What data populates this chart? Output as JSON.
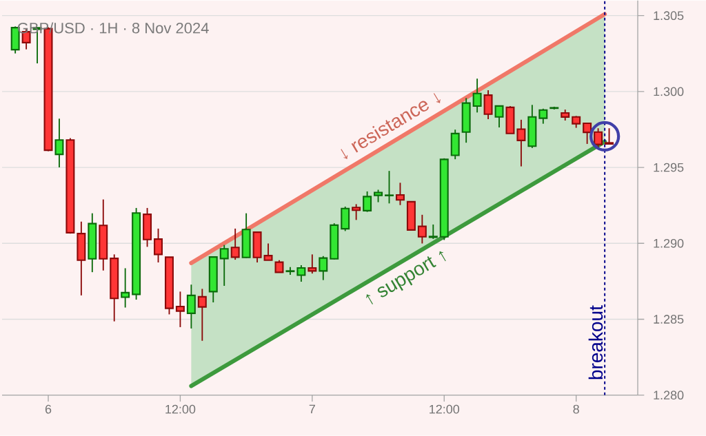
{
  "chart_data": {
    "type": "candlestick",
    "title": "GBP/USD · 1H · 8 Nov 2024",
    "x": [
      "2024-11-05T21:00",
      "2024-11-05T22:00",
      "2024-11-05T23:00",
      "2024-11-06T00:00",
      "2024-11-06T01:00",
      "2024-11-06T02:00",
      "2024-11-06T03:00",
      "2024-11-06T04:00",
      "2024-11-06T05:00",
      "2024-11-06T06:00",
      "2024-11-06T07:00",
      "2024-11-06T08:00",
      "2024-11-06T09:00",
      "2024-11-06T10:00",
      "2024-11-06T11:00",
      "2024-11-06T12:00",
      "2024-11-06T13:00",
      "2024-11-06T14:00",
      "2024-11-06T15:00",
      "2024-11-06T16:00",
      "2024-11-06T17:00",
      "2024-11-06T18:00",
      "2024-11-06T19:00",
      "2024-11-06T20:00",
      "2024-11-06T21:00",
      "2024-11-06T22:00",
      "2024-11-06T23:00",
      "2024-11-07T00:00",
      "2024-11-07T01:00",
      "2024-11-07T02:00",
      "2024-11-07T03:00",
      "2024-11-07T04:00",
      "2024-11-07T05:00",
      "2024-11-07T06:00",
      "2024-11-07T07:00",
      "2024-11-07T08:00",
      "2024-11-07T09:00",
      "2024-11-07T10:00",
      "2024-11-07T11:00",
      "2024-11-07T12:00",
      "2024-11-07T13:00",
      "2024-11-07T14:00",
      "2024-11-07T15:00",
      "2024-11-07T16:00",
      "2024-11-07T17:00",
      "2024-11-07T18:00",
      "2024-11-07T19:00",
      "2024-11-07T20:00",
      "2024-11-07T21:00",
      "2024-11-07T22:00",
      "2024-11-07T23:00",
      "2024-11-08T00:00",
      "2024-11-08T01:00",
      "2024-11-08T02:00",
      "2024-11-08T03:00"
    ],
    "ohlc": [
      [
        1.30276,
        1.30429,
        1.30251,
        1.30421
      ],
      [
        1.30394,
        1.30417,
        1.30278,
        1.30322
      ],
      [
        1.3041,
        1.3042,
        1.30186,
        1.3042
      ],
      [
        1.30414,
        1.30424,
        1.29607,
        1.29613
      ],
      [
        1.29586,
        1.29821,
        1.295,
        1.29681
      ],
      [
        1.29681,
        1.29693,
        1.29064,
        1.2907
      ],
      [
        1.29064,
        1.29143,
        1.28657,
        1.28889
      ],
      [
        1.28898,
        1.29198,
        1.2881,
        1.2913
      ],
      [
        1.29118,
        1.29289,
        1.28821,
        1.28898
      ],
      [
        1.28901,
        1.28927,
        1.28486,
        1.28637
      ],
      [
        1.28645,
        1.28836,
        1.28577,
        1.28675
      ],
      [
        1.28664,
        1.29233,
        1.28629,
        1.292
      ],
      [
        1.29191,
        1.29233,
        1.28977,
        1.29025
      ],
      [
        1.29028,
        1.29097,
        1.28874,
        1.28927
      ],
      [
        1.28909,
        1.28909,
        1.28532,
        1.28572
      ],
      [
        1.28584,
        1.28682,
        1.28448,
        1.28554
      ],
      [
        1.28539,
        1.28728,
        1.28439,
        1.28657
      ],
      [
        1.28648,
        1.287,
        1.28358,
        1.28581
      ],
      [
        1.28682,
        1.2891,
        1.28611,
        1.2891
      ],
      [
        1.289,
        1.28989,
        1.2872,
        1.28964
      ],
      [
        1.28973,
        1.29097,
        1.28892,
        1.28909
      ],
      [
        1.28907,
        1.29198,
        1.28904,
        1.29091
      ],
      [
        1.29073,
        1.29073,
        1.28874,
        1.28907
      ],
      [
        1.28919,
        1.28999,
        1.28889,
        1.28889
      ],
      [
        1.28876,
        1.28889,
        1.28809,
        1.28809
      ],
      [
        1.28815,
        1.28844,
        1.28792,
        1.28818
      ],
      [
        1.2879,
        1.28856,
        1.28747,
        1.28838
      ],
      [
        1.28838,
        1.28927,
        1.28801,
        1.28818
      ],
      [
        1.28818,
        1.28916,
        1.28758,
        1.28903
      ],
      [
        1.28898,
        1.29132,
        1.28894,
        1.2912
      ],
      [
        1.29096,
        1.29242,
        1.29081,
        1.29229
      ],
      [
        1.29236,
        1.29258,
        1.29154,
        1.29218
      ],
      [
        1.29215,
        1.29342,
        1.29207,
        1.29308
      ],
      [
        1.29316,
        1.29353,
        1.29271,
        1.29335
      ],
      [
        1.29315,
        1.29477,
        1.29263,
        1.29317
      ],
      [
        1.29319,
        1.29399,
        1.29252,
        1.29286
      ],
      [
        1.29274,
        1.29274,
        1.29088,
        1.29088
      ],
      [
        1.29112,
        1.29188,
        1.28999,
        1.29043
      ],
      [
        1.2904,
        1.29124,
        1.29029,
        1.29045
      ],
      [
        1.29043,
        1.2956,
        1.29022,
        1.29553
      ],
      [
        1.2958,
        1.29749,
        1.29554,
        1.29723
      ],
      [
        1.29733,
        1.29957,
        1.29663,
        1.29924
      ],
      [
        1.29904,
        1.30085,
        1.29862,
        1.29987
      ],
      [
        1.29976,
        1.30009,
        1.29818,
        1.29851
      ],
      [
        1.29833,
        1.29905,
        1.29764,
        1.29905
      ],
      [
        1.29896,
        1.29904,
        1.29724,
        1.29724
      ],
      [
        1.29752,
        1.29814,
        1.29507,
        1.29678
      ],
      [
        1.2964,
        1.29912,
        1.29628,
        1.29833
      ],
      [
        1.29824,
        1.29887,
        1.29788,
        1.29878
      ],
      [
        1.2989,
        1.299,
        1.29882,
        1.29893
      ],
      [
        1.29859,
        1.29881,
        1.29809,
        1.29832
      ],
      [
        1.29833,
        1.29839,
        1.29761,
        1.29788
      ],
      [
        1.29791,
        1.29791,
        1.29655,
        1.29731
      ],
      [
        1.29733,
        1.29758,
        1.29625,
        1.29652
      ],
      [
        1.29662,
        1.29758,
        1.29652,
        1.29655
      ]
    ],
    "series": [
      {
        "name": "↓ resistance ↓",
        "type": "line",
        "color": "#f07868",
        "x": [
          "2024-11-06T13:00",
          "2024-11-08T02:36"
        ],
        "values": [
          1.2887,
          1.3051
        ]
      },
      {
        "name": "↑ support ↑",
        "type": "line",
        "color": "#3d9a3d",
        "x": [
          "2024-11-06T13:00",
          "2024-11-08T02:36"
        ],
        "values": [
          1.2806,
          1.2967
        ],
        "lower": [
          1.2806,
          1.2967
        ],
        "upper": [
          1.2887,
          1.3051
        ]
      }
    ],
    "xlim": [
      "2024-11-05T19:48",
      "2024-11-08T05:36"
    ],
    "ylim": [
      1.28,
      1.306
    ],
    "xticks": [
      {
        "value": "2024-11-06T00:00",
        "label": "6"
      },
      {
        "value": "2024-11-06T12:00",
        "label": "12:00"
      },
      {
        "value": "2024-11-07T00:00",
        "label": "7"
      },
      {
        "value": "2024-11-07T12:00",
        "label": "12:00"
      },
      {
        "value": "2024-11-08T00:00",
        "label": "8"
      }
    ],
    "yticks": [
      {
        "value": 1.28,
        "label": "1.280"
      },
      {
        "value": 1.285,
        "label": "1.285"
      },
      {
        "value": 1.29,
        "label": "1.290"
      },
      {
        "value": 1.295,
        "label": "1.295"
      },
      {
        "value": 1.3,
        "label": "1.300"
      },
      {
        "value": 1.305,
        "label": "1.305"
      }
    ],
    "grid": "y",
    "ref_lines": [
      {
        "axis": "x",
        "value": "2024-11-08T02:36",
        "label": "breakout",
        "color": "#00008b",
        "line_style": "dashed"
      }
    ]
  }
}
